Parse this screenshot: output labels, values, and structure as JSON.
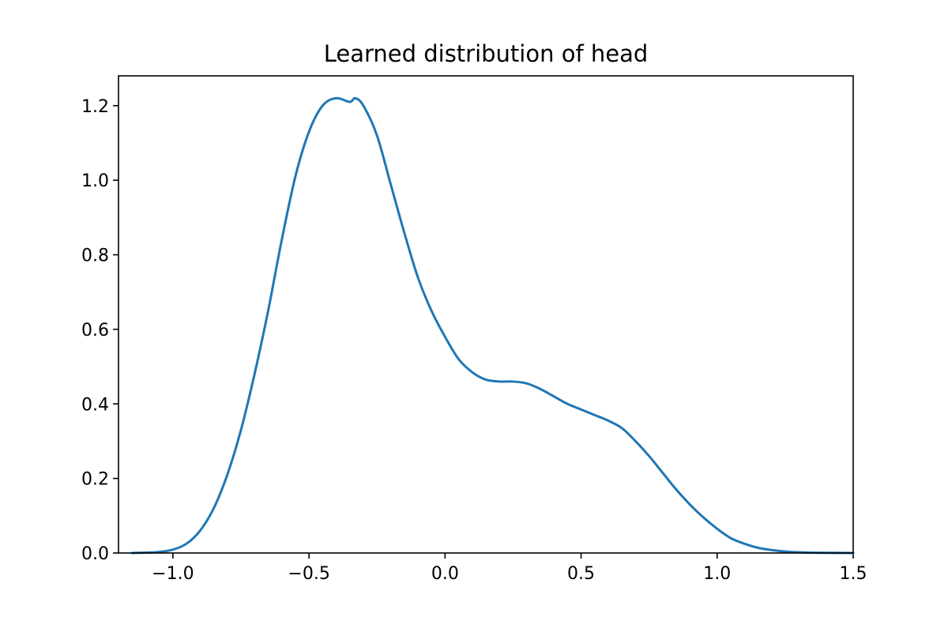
{
  "chart_data": {
    "type": "line",
    "title": "Learned distribution of head",
    "xlabel": "",
    "ylabel": "",
    "xlim": [
      -1.2,
      1.5
    ],
    "ylim": [
      0,
      1.28
    ],
    "grid": false,
    "x_ticks": [
      {
        "value": -1.0,
        "label": "−1.0"
      },
      {
        "value": -0.5,
        "label": "−0.5"
      },
      {
        "value": 0.0,
        "label": "0.0"
      },
      {
        "value": 0.5,
        "label": "0.5"
      },
      {
        "value": 1.0,
        "label": "1.0"
      },
      {
        "value": 1.5,
        "label": "1.5"
      }
    ],
    "y_ticks": [
      {
        "value": 0.0,
        "label": "0.0"
      },
      {
        "value": 0.2,
        "label": "0.2"
      },
      {
        "value": 0.4,
        "label": "0.4"
      },
      {
        "value": 0.6,
        "label": "0.6"
      },
      {
        "value": 0.8,
        "label": "0.8"
      },
      {
        "value": 1.0,
        "label": "1.0"
      },
      {
        "value": 1.2,
        "label": "1.2"
      }
    ],
    "series": [
      {
        "color": "#1f77b4",
        "x": [
          -1.15,
          -1.1,
          -1.05,
          -1.0,
          -0.95,
          -0.9,
          -0.85,
          -0.8,
          -0.75,
          -0.7,
          -0.65,
          -0.6,
          -0.55,
          -0.5,
          -0.45,
          -0.4,
          -0.35,
          -0.33,
          -0.3,
          -0.25,
          -0.2,
          -0.15,
          -0.1,
          -0.05,
          0.0,
          0.05,
          0.1,
          0.15,
          0.2,
          0.25,
          0.3,
          0.35,
          0.4,
          0.45,
          0.5,
          0.55,
          0.6,
          0.65,
          0.7,
          0.75,
          0.8,
          0.85,
          0.9,
          0.95,
          1.0,
          1.05,
          1.1,
          1.15,
          1.2,
          1.25,
          1.3,
          1.35,
          1.4,
          1.45,
          1.5
        ],
        "y": [
          0.0,
          0.001,
          0.003,
          0.009,
          0.025,
          0.06,
          0.12,
          0.21,
          0.33,
          0.48,
          0.65,
          0.84,
          1.01,
          1.13,
          1.2,
          1.22,
          1.21,
          1.22,
          1.2,
          1.12,
          0.99,
          0.86,
          0.74,
          0.65,
          0.58,
          0.52,
          0.485,
          0.465,
          0.46,
          0.46,
          0.455,
          0.44,
          0.42,
          0.4,
          0.385,
          0.37,
          0.355,
          0.335,
          0.3,
          0.26,
          0.215,
          0.17,
          0.13,
          0.095,
          0.065,
          0.04,
          0.025,
          0.014,
          0.008,
          0.004,
          0.002,
          0.001,
          0.0005,
          0.0002,
          0.0001
        ]
      }
    ]
  }
}
